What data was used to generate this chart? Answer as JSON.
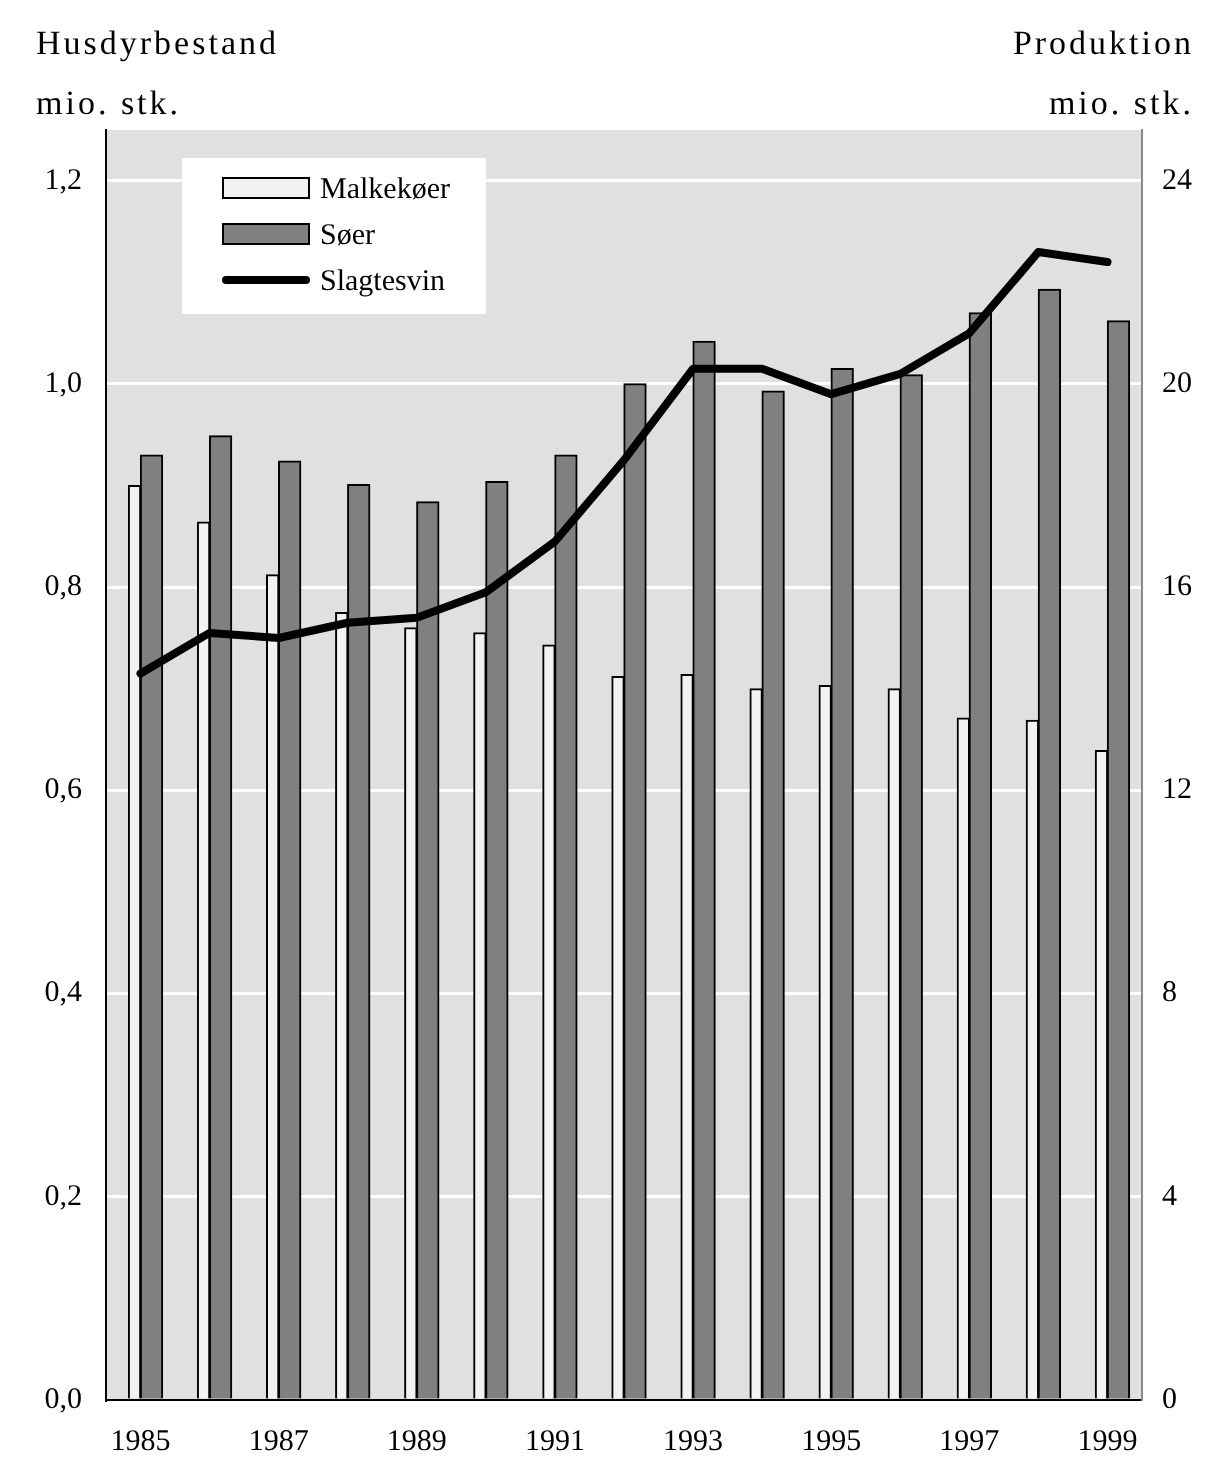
{
  "chart_data": {
    "type": "bar",
    "ylabel": "Husdyrbestand\nmio. stk.",
    "y2label": "Produktion\nmio. stk.",
    "categories": [
      "1985",
      null,
      "1987",
      null,
      "1989",
      null,
      "1991",
      null,
      "1993",
      null,
      "1995",
      null,
      "1997",
      null,
      "1999"
    ],
    "series": [
      {
        "name": "Malkekøer",
        "color": "#f2f2f2",
        "values": [
          0.9,
          0.864,
          0.812,
          0.775,
          0.76,
          0.755,
          0.743,
          0.712,
          0.714,
          0.7,
          0.703,
          0.7,
          0.671,
          0.669,
          0.639
        ]
      },
      {
        "name": "Søer",
        "color": "#808080",
        "values": [
          0.93,
          0.949,
          0.924,
          0.901,
          0.884,
          0.904,
          0.93,
          1.0,
          1.042,
          0.993,
          1.015,
          1.009,
          1.07,
          1.093,
          1.062
        ]
      },
      {
        "name": "Slagtesvin",
        "type": "line",
        "axis": "y2",
        "color": "#000000",
        "values": [
          14.3,
          15.1,
          15.0,
          15.3,
          15.4,
          15.9,
          16.9,
          18.5,
          20.3,
          20.3,
          19.8,
          20.2,
          21.0,
          22.6,
          22.4
        ]
      }
    ],
    "ylim": [
      0,
      1.25
    ],
    "yticks": [
      {
        "value": 0,
        "label": "0,0"
      },
      {
        "value": 0.2,
        "label": "0,2"
      },
      {
        "value": 0.4,
        "label": "0,4"
      },
      {
        "value": 0.6,
        "label": "0,6"
      },
      {
        "value": 0.8,
        "label": "0,8"
      },
      {
        "value": 1.0,
        "label": "1,0"
      },
      {
        "value": 1.2,
        "label": "1,2"
      }
    ],
    "y2lim": [
      0,
      25
    ],
    "y2ticks": [
      0,
      4,
      8,
      12,
      16,
      20,
      24
    ],
    "grid": "y",
    "legend": "top left",
    "marker": "none"
  }
}
